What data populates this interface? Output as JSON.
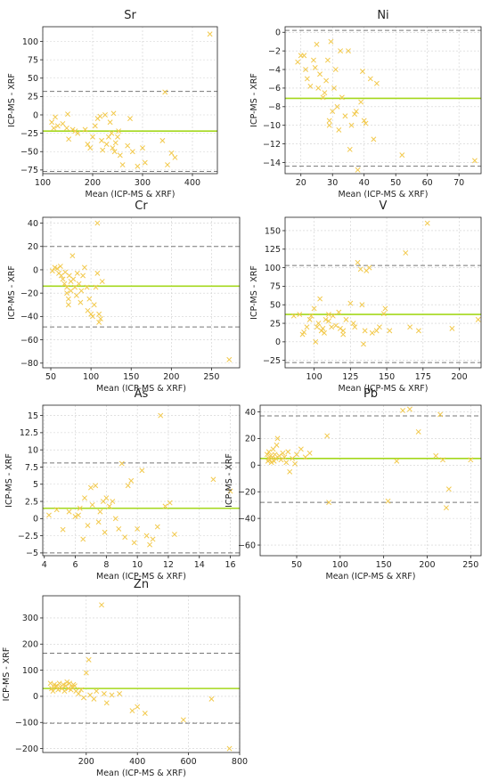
{
  "chart_data": [
    {
      "type": "scatter",
      "title": "Sr",
      "xlabel": "Mean (ICP-MS & XRF)",
      "ylabel": "ICP-MS - XRF",
      "xlim": [
        100,
        450
      ],
      "ylim": [
        -80,
        120
      ],
      "xticks": [
        100,
        200,
        300,
        400
      ],
      "yticks": [
        -75,
        -50,
        -25,
        0,
        25,
        50,
        75,
        100
      ],
      "mean_diff": -22,
      "loa_upper": 32,
      "loa_lower": -77,
      "points": [
        [
          118,
          -10
        ],
        [
          122,
          -18
        ],
        [
          125,
          -3
        ],
        [
          130,
          -15
        ],
        [
          140,
          -12
        ],
        [
          148,
          -18
        ],
        [
          150,
          1
        ],
        [
          152,
          -33
        ],
        [
          160,
          -20
        ],
        [
          165,
          -22
        ],
        [
          170,
          -25
        ],
        [
          185,
          -20
        ],
        [
          190,
          -40
        ],
        [
          195,
          -45
        ],
        [
          200,
          -30
        ],
        [
          205,
          -15
        ],
        [
          210,
          -5
        ],
        [
          215,
          -2
        ],
        [
          218,
          -35
        ],
        [
          220,
          -48
        ],
        [
          225,
          0
        ],
        [
          228,
          -40
        ],
        [
          232,
          -30
        ],
        [
          235,
          -10
        ],
        [
          238,
          -25
        ],
        [
          240,
          -45
        ],
        [
          242,
          2
        ],
        [
          244,
          -50
        ],
        [
          246,
          -38
        ],
        [
          250,
          -30
        ],
        [
          252,
          -22
        ],
        [
          255,
          -55
        ],
        [
          260,
          -68
        ],
        [
          270,
          -42
        ],
        [
          275,
          -5
        ],
        [
          280,
          -50
        ],
        [
          290,
          -70
        ],
        [
          300,
          -45
        ],
        [
          305,
          -65
        ],
        [
          340,
          -35
        ],
        [
          345,
          31
        ],
        [
          350,
          -68
        ],
        [
          358,
          -52
        ],
        [
          365,
          -58
        ],
        [
          435,
          110
        ]
      ]
    },
    {
      "type": "scatter",
      "title": "Ni",
      "xlabel": "Mean (ICP-MS & XRF)",
      "ylabel": "ICP-MS - XRF",
      "xlim": [
        15,
        77
      ],
      "ylim": [
        -15.2,
        0.6
      ],
      "xticks": [
        20,
        30,
        40,
        50,
        60,
        70
      ],
      "yticks": [
        -14,
        -12,
        -10,
        -8,
        -6,
        -4,
        -2,
        0
      ],
      "mean_diff": -7.1,
      "loa_upper": 0.2,
      "loa_lower": -14.4,
      "points": [
        [
          19,
          -3.2
        ],
        [
          20,
          -2.5
        ],
        [
          21,
          -2.5
        ],
        [
          21.5,
          -4
        ],
        [
          22,
          -5
        ],
        [
          23,
          -5.8
        ],
        [
          24,
          -3
        ],
        [
          24.5,
          -3.8
        ],
        [
          25,
          -1.3
        ],
        [
          25.5,
          -6
        ],
        [
          26,
          -4.5
        ],
        [
          27,
          -7
        ],
        [
          27.5,
          -6.5
        ],
        [
          28,
          -5.2
        ],
        [
          28.5,
          -3
        ],
        [
          29,
          -10
        ],
        [
          29,
          -9.5
        ],
        [
          29.5,
          -1
        ],
        [
          30,
          -8.5
        ],
        [
          30.5,
          -6
        ],
        [
          31,
          -4
        ],
        [
          31.5,
          -8
        ],
        [
          32,
          -10.5
        ],
        [
          32.5,
          -2
        ],
        [
          33,
          -7
        ],
        [
          34,
          -9
        ],
        [
          35,
          -2
        ],
        [
          35.5,
          -12.6
        ],
        [
          36,
          -10
        ],
        [
          37,
          -8.8
        ],
        [
          37.5,
          -8.5
        ],
        [
          38,
          -14.8
        ],
        [
          39,
          -7.5
        ],
        [
          39.5,
          -4.2
        ],
        [
          40,
          -9.5
        ],
        [
          40.5,
          -9.8
        ],
        [
          42,
          -5
        ],
        [
          43,
          -11.5
        ],
        [
          44,
          -5.5
        ],
        [
          52,
          -13.2
        ],
        [
          75,
          -13.8
        ]
      ]
    },
    {
      "type": "scatter",
      "title": "Cr",
      "xlabel": "Mean (ICP-MS & XRF)",
      "ylabel": "ICP-MS - XRF",
      "xlim": [
        40,
        285
      ],
      "ylim": [
        -84,
        45
      ],
      "xticks": [
        50,
        100,
        150,
        200,
        250
      ],
      "yticks": [
        -80,
        -60,
        -40,
        -20,
        0,
        20,
        40
      ],
      "mean_diff": -14,
      "loa_upper": 20,
      "loa_lower": -49,
      "points": [
        [
          52,
          -1
        ],
        [
          55,
          2
        ],
        [
          58,
          1
        ],
        [
          60,
          -3
        ],
        [
          62,
          3
        ],
        [
          63,
          -5
        ],
        [
          65,
          -8
        ],
        [
          67,
          -12
        ],
        [
          68,
          -2
        ],
        [
          70,
          -15
        ],
        [
          70,
          -20
        ],
        [
          72,
          -25
        ],
        [
          72,
          -30
        ],
        [
          73,
          -5
        ],
        [
          75,
          -10
        ],
        [
          75,
          -18
        ],
        [
          77,
          12
        ],
        [
          78,
          -8
        ],
        [
          80,
          -15
        ],
        [
          82,
          -22
        ],
        [
          83,
          -3
        ],
        [
          85,
          -12
        ],
        [
          87,
          -28
        ],
        [
          88,
          -18
        ],
        [
          90,
          -5
        ],
        [
          92,
          2
        ],
        [
          95,
          -15
        ],
        [
          96,
          -35
        ],
        [
          98,
          -25
        ],
        [
          100,
          -38
        ],
        [
          102,
          -40
        ],
        [
          104,
          -30
        ],
        [
          106,
          -15
        ],
        [
          108,
          -3
        ],
        [
          110,
          -38
        ],
        [
          110,
          -45
        ],
        [
          112,
          -42
        ],
        [
          114,
          -10
        ],
        [
          108,
          40
        ],
        [
          272,
          -77
        ]
      ]
    },
    {
      "type": "scatter",
      "title": "V",
      "xlabel": "Mean (ICP-MS & XRF)",
      "ylabel": "ICP-MS - XRF",
      "xlim": [
        80,
        215
      ],
      "ylim": [
        -35,
        168
      ],
      "xticks": [
        100,
        125,
        150,
        175,
        200
      ],
      "yticks": [
        -25,
        0,
        25,
        50,
        75,
        100,
        125,
        150
      ],
      "mean_diff": 37,
      "loa_upper": 103,
      "loa_lower": -28,
      "points": [
        [
          86,
          35
        ],
        [
          90,
          37
        ],
        [
          92,
          10
        ],
        [
          93,
          13
        ],
        [
          95,
          20
        ],
        [
          97,
          30
        ],
        [
          98,
          35
        ],
        [
          100,
          45
        ],
        [
          101,
          0
        ],
        [
          102,
          20
        ],
        [
          103,
          25
        ],
        [
          104,
          58
        ],
        [
          105,
          15
        ],
        [
          106,
          18
        ],
        [
          107,
          12
        ],
        [
          108,
          30
        ],
        [
          110,
          28
        ],
        [
          110,
          37
        ],
        [
          112,
          20
        ],
        [
          113,
          35
        ],
        [
          115,
          22
        ],
        [
          117,
          40
        ],
        [
          118,
          18
        ],
        [
          120,
          15
        ],
        [
          120,
          10
        ],
        [
          122,
          30
        ],
        [
          125,
          52
        ],
        [
          127,
          25
        ],
        [
          128,
          20
        ],
        [
          130,
          107
        ],
        [
          132,
          98
        ],
        [
          133,
          50
        ],
        [
          134,
          -3
        ],
        [
          135,
          15
        ],
        [
          136,
          96
        ],
        [
          138,
          100
        ],
        [
          140,
          12
        ],
        [
          143,
          15
        ],
        [
          145,
          20
        ],
        [
          148,
          38
        ],
        [
          149,
          45
        ],
        [
          152,
          15
        ],
        [
          163,
          120
        ],
        [
          166,
          20
        ],
        [
          172,
          15
        ],
        [
          178,
          160
        ],
        [
          195,
          18
        ],
        [
          213,
          30
        ]
      ]
    },
    {
      "type": "scatter",
      "title": "As",
      "xlabel": "Mean (ICP-MS & XRF)",
      "ylabel": "ICP-MS - XRF",
      "xlim": [
        3.9,
        16.6
      ],
      "ylim": [
        -5.4,
        16.5
      ],
      "xticks": [
        4,
        6,
        8,
        10,
        12,
        14,
        16
      ],
      "yticks": [
        -5.0,
        -2.5,
        0.0,
        2.5,
        5.0,
        7.5,
        10.0,
        12.5,
        15.0
      ],
      "mean_diff": 1.5,
      "loa_upper": 8.1,
      "loa_lower": -5.0,
      "points": [
        [
          4.3,
          0.5
        ],
        [
          4.8,
          1.3
        ],
        [
          5.2,
          -1.6
        ],
        [
          5.6,
          1.0
        ],
        [
          6.0,
          0.3
        ],
        [
          6.2,
          0.5
        ],
        [
          6.3,
          1.5
        ],
        [
          6.5,
          -3.0
        ],
        [
          6.6,
          3.0
        ],
        [
          6.8,
          -1.0
        ],
        [
          7.0,
          4.5
        ],
        [
          7.1,
          2.0
        ],
        [
          7.3,
          4.8
        ],
        [
          7.5,
          -0.5
        ],
        [
          7.6,
          1.0
        ],
        [
          7.8,
          2.5
        ],
        [
          7.9,
          -2.0
        ],
        [
          8.0,
          3.0
        ],
        [
          8.2,
          1.8
        ],
        [
          8.4,
          2.5
        ],
        [
          8.6,
          0.0
        ],
        [
          8.8,
          -1.5
        ],
        [
          9.0,
          8.0
        ],
        [
          9.2,
          -2.7
        ],
        [
          9.4,
          4.8
        ],
        [
          9.6,
          5.5
        ],
        [
          9.8,
          -3.5
        ],
        [
          10.0,
          -1.5
        ],
        [
          10.3,
          7.0
        ],
        [
          10.6,
          -2.5
        ],
        [
          10.8,
          -3.8
        ],
        [
          11.0,
          -3.0
        ],
        [
          11.3,
          -1.2
        ],
        [
          11.5,
          15.0
        ],
        [
          11.8,
          1.8
        ],
        [
          12.1,
          2.3
        ],
        [
          12.4,
          -2.3
        ],
        [
          14.9,
          5.7
        ],
        [
          16.0,
          4.0
        ]
      ]
    },
    {
      "type": "scatter",
      "title": "Pb",
      "xlabel": "Mean (ICP-MS & XRF)",
      "ylabel": "ICP-MS - XRF",
      "xlim": [
        8,
        262
      ],
      "ylim": [
        -68,
        45
      ],
      "xticks": [
        50,
        100,
        150,
        200,
        250
      ],
      "yticks": [
        -60,
        -40,
        -20,
        0,
        20,
        40
      ],
      "mean_diff": 5,
      "loa_upper": 37,
      "loa_lower": -28,
      "points": [
        [
          16,
          8
        ],
        [
          17,
          3
        ],
        [
          18,
          5
        ],
        [
          18,
          10
        ],
        [
          19,
          4
        ],
        [
          20,
          7
        ],
        [
          21,
          2
        ],
        [
          22,
          6
        ],
        [
          23,
          12
        ],
        [
          24,
          3
        ],
        [
          25,
          8
        ],
        [
          26,
          5
        ],
        [
          27,
          15
        ],
        [
          28,
          20
        ],
        [
          30,
          7
        ],
        [
          32,
          4
        ],
        [
          34,
          9
        ],
        [
          36,
          6
        ],
        [
          38,
          2
        ],
        [
          40,
          10
        ],
        [
          42,
          -5
        ],
        [
          45,
          5
        ],
        [
          48,
          1
        ],
        [
          50,
          8
        ],
        [
          55,
          12
        ],
        [
          60,
          6
        ],
        [
          65,
          9
        ],
        [
          85,
          22
        ],
        [
          87,
          -28
        ],
        [
          155,
          -27
        ],
        [
          165,
          3
        ],
        [
          172,
          41
        ],
        [
          180,
          42
        ],
        [
          190,
          25
        ],
        [
          210,
          7
        ],
        [
          215,
          38
        ],
        [
          218,
          4
        ],
        [
          225,
          -18
        ],
        [
          222,
          -32
        ],
        [
          250,
          4
        ]
      ]
    },
    {
      "type": "scatter",
      "title": "Zn",
      "xlabel": "Mean (ICP-MS & XRF)",
      "ylabel": "ICP-MS - XRF",
      "xlim": [
        30,
        800
      ],
      "ylim": [
        -215,
        385
      ],
      "xticks": [
        200,
        400,
        600,
        800
      ],
      "yticks": [
        -200,
        -100,
        0,
        100,
        200,
        300
      ],
      "mean_diff": 30,
      "loa_upper": 165,
      "loa_lower": -103,
      "points": [
        [
          60,
          50
        ],
        [
          65,
          30
        ],
        [
          70,
          20
        ],
        [
          75,
          45
        ],
        [
          80,
          38
        ],
        [
          85,
          40
        ],
        [
          90,
          25
        ],
        [
          95,
          50
        ],
        [
          100,
          35
        ],
        [
          105,
          30
        ],
        [
          110,
          45
        ],
        [
          115,
          20
        ],
        [
          120,
          40
        ],
        [
          125,
          55
        ],
        [
          130,
          30
        ],
        [
          135,
          50
        ],
        [
          140,
          25
        ],
        [
          145,
          35
        ],
        [
          150,
          45
        ],
        [
          155,
          40
        ],
        [
          160,
          20
        ],
        [
          170,
          10
        ],
        [
          180,
          25
        ],
        [
          190,
          -5
        ],
        [
          200,
          90
        ],
        [
          210,
          140
        ],
        [
          215,
          5
        ],
        [
          230,
          -10
        ],
        [
          240,
          20
        ],
        [
          260,
          350
        ],
        [
          270,
          10
        ],
        [
          280,
          -25
        ],
        [
          300,
          5
        ],
        [
          330,
          10
        ],
        [
          380,
          -55
        ],
        [
          400,
          -40
        ],
        [
          430,
          -65
        ],
        [
          580,
          -90
        ],
        [
          690,
          -10
        ],
        [
          760,
          -200
        ]
      ]
    }
  ]
}
